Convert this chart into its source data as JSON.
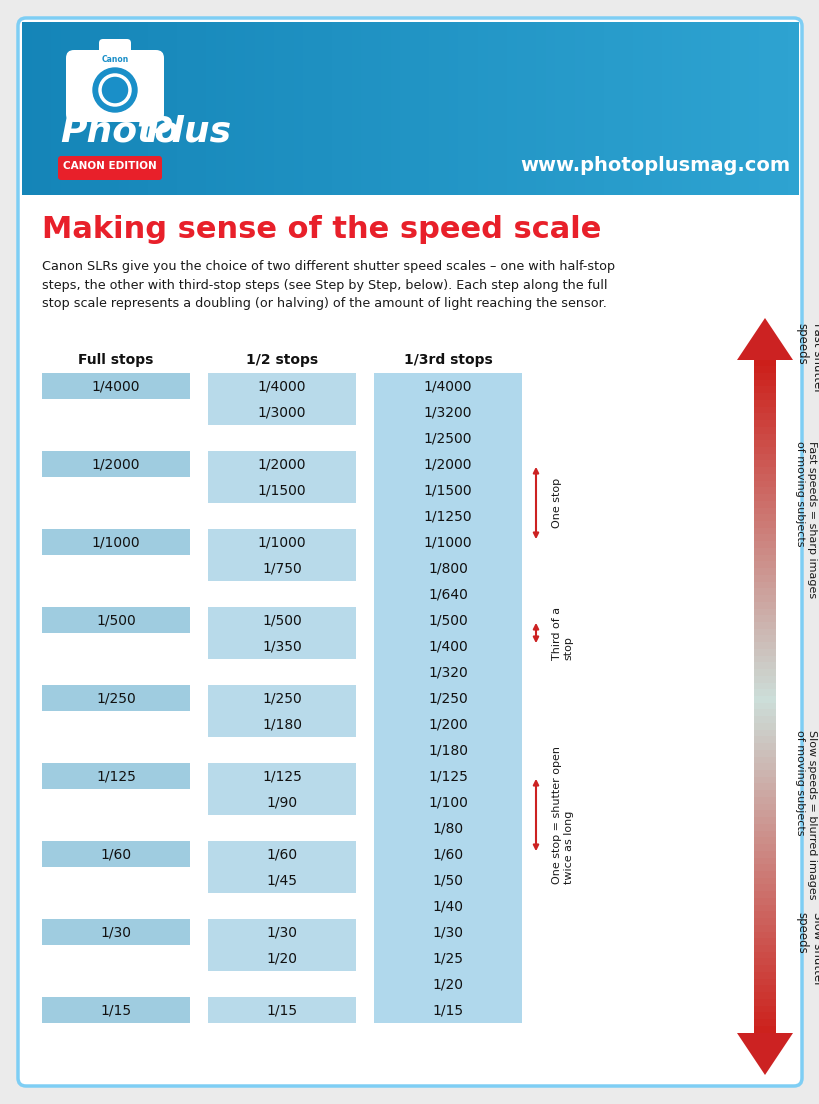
{
  "bg_color": "#ebebeb",
  "card_bg": "#ffffff",
  "card_border": "#7ecef4",
  "header_bg": "#1a8fc8",
  "title": "Making sense of the speed scale",
  "title_color": "#e8202a",
  "body_text": "Canon SLRs give you the choice of two different shutter speed scales – one with half-stop\nsteps, the other with third-stop steps (see Step by Step, below). Each step along the full\nstop scale represents a doubling (or halving) of the amount of light reaching the sensor.",
  "col_headers": [
    "Full stops",
    "1/2 stops",
    "1/3rd stops"
  ],
  "cell_bg_full": "#9fcce0",
  "cell_bg_half": "#b8daea",
  "cell_bg_third": "#b0d8ec",
  "website": "www.photoplusmag.com",
  "full_stop_rows": [
    0,
    3,
    6,
    9,
    12,
    15,
    18,
    21,
    24
  ],
  "full_stop_labels": [
    "1/4000",
    "1/2000",
    "1/1000",
    "1/500",
    "1/250",
    "1/125",
    "1/60",
    "1/30",
    "1/15"
  ],
  "half_stop_rows": [
    0,
    1,
    3,
    4,
    6,
    7,
    9,
    10,
    12,
    13,
    15,
    16,
    18,
    19,
    21,
    22,
    24
  ],
  "half_stop_labels": [
    "1/4000",
    "1/3000",
    "1/2000",
    "1/1500",
    "1/1000",
    "1/750",
    "1/500",
    "1/350",
    "1/250",
    "1/180",
    "1/125",
    "1/90",
    "1/60",
    "1/45",
    "1/30",
    "1/20",
    "1/15"
  ],
  "third_stops": [
    "1/4000",
    "1/3200",
    "1/2500",
    "1/2000",
    "1/1500",
    "1/1250",
    "1/1000",
    "1/800",
    "1/640",
    "1/500",
    "1/400",
    "1/320",
    "1/250",
    "1/200",
    "1/180",
    "1/125",
    "1/100",
    "1/80",
    "1/60",
    "1/50",
    "1/40",
    "1/30",
    "1/25",
    "1/20",
    "1/15"
  ],
  "ann_one_stop_rows": [
    3,
    6
  ],
  "ann_one_stop_label": "One stop",
  "ann_third_rows": [
    9,
    10
  ],
  "ann_third_label": "Third of a\nstop",
  "ann_slow_rows": [
    15,
    18
  ],
  "ann_slow_label": "One stop = shutter open\ntwice as long",
  "ann_fast_shutter": "Fast shutter\nspeeds",
  "ann_fast_images": "Fast speeds = sharp images\nof moving subjects",
  "ann_slow_images": "Slow speeds = blurred images\nof moving subjects",
  "ann_slow_shutter": "Slow shutter\nspeeds",
  "arrow_red": "#cc2222"
}
